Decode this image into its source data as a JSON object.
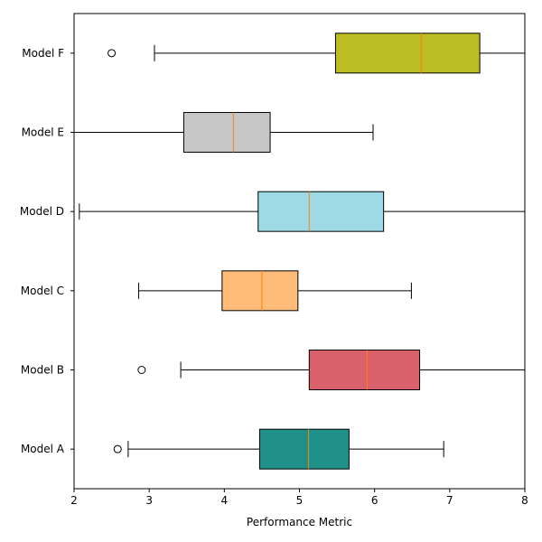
{
  "chart_data": {
    "type": "boxplot",
    "orientation": "horizontal",
    "title": "",
    "xlabel": "Performance Metric",
    "ylabel": "",
    "xlim": [
      2,
      8
    ],
    "xticks": [
      2,
      3,
      4,
      5,
      6,
      7,
      8
    ],
    "grid": false,
    "legend": "none",
    "categories": [
      "Model A",
      "Model B",
      "Model C",
      "Model D",
      "Model E",
      "Model F"
    ],
    "series": [
      {
        "category": "Model A",
        "whisker_low": 2.72,
        "q1": 4.47,
        "median": 5.12,
        "q3": 5.66,
        "whisker_high": 6.92,
        "outliers": [
          2.58
        ],
        "color": "#1f9188"
      },
      {
        "category": "Model B",
        "whisker_low": 3.42,
        "q1": 5.13,
        "median": 5.9,
        "q3": 6.6,
        "whisker_high": 8.0,
        "outliers": [
          2.9
        ],
        "color": "#d9616b"
      },
      {
        "category": "Model C",
        "whisker_low": 2.86,
        "q1": 3.97,
        "median": 4.5,
        "q3": 4.98,
        "whisker_high": 6.49,
        "outliers": [],
        "color": "#ffbb78"
      },
      {
        "category": "Model D",
        "whisker_low": 2.07,
        "q1": 4.45,
        "median": 5.13,
        "q3": 6.12,
        "whisker_high": 8.0,
        "outliers": [],
        "color": "#9edae5"
      },
      {
        "category": "Model E",
        "whisker_low": 2.0,
        "q1": 3.46,
        "median": 4.12,
        "q3": 4.61,
        "whisker_high": 5.98,
        "outliers": [],
        "color": "#c7c7c7"
      },
      {
        "category": "Model F",
        "whisker_low": 3.07,
        "q1": 5.48,
        "median": 6.62,
        "q3": 7.4,
        "whisker_high": 8.0,
        "outliers": [
          2.5
        ],
        "color": "#bcbd22"
      }
    ],
    "median_color": "#ff7f0e"
  }
}
